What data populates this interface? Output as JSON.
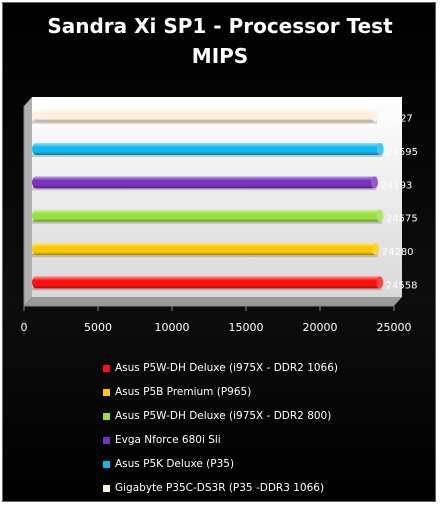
{
  "chart_data": {
    "type": "bar",
    "orientation": "horizontal",
    "title": "Sandra Xi SP1 - Processor Test",
    "subtitle": "MIPS",
    "xlim": [
      0,
      25000
    ],
    "xticks": [
      "0",
      "5000",
      "10000",
      "15000",
      "20000",
      "25000"
    ],
    "grid": false,
    "legend_position": "bottom",
    "series": [
      {
        "name": "Asus P5W-DH Deluxe (i975X - DDR2 1066)",
        "value": 24558,
        "value_label": "24558",
        "color": "#ff1010"
      },
      {
        "name": "Asus P5B Premium (P965)",
        "value": 24280,
        "value_label": "24280",
        "color": "#ffc800"
      },
      {
        "name": "Asus P5W-DH Deluxe (i975X - DDR2 800)",
        "value": 24575,
        "value_label": "24575",
        "color": "#99e040"
      },
      {
        "name": "Evga Nforce 680i Sli",
        "value": 24193,
        "value_label": "24193",
        "color": "#7a30c0"
      },
      {
        "name": "Asus P5K Deluxe (P35)",
        "value": 24595,
        "value_label": "24595",
        "color": "#10b8f0"
      },
      {
        "name": "Gigabyte P35C-DS3R (P35 -DDR3 1066)",
        "value": 24227,
        "value_label": "24227",
        "color": "#fff0dc"
      }
    ]
  }
}
